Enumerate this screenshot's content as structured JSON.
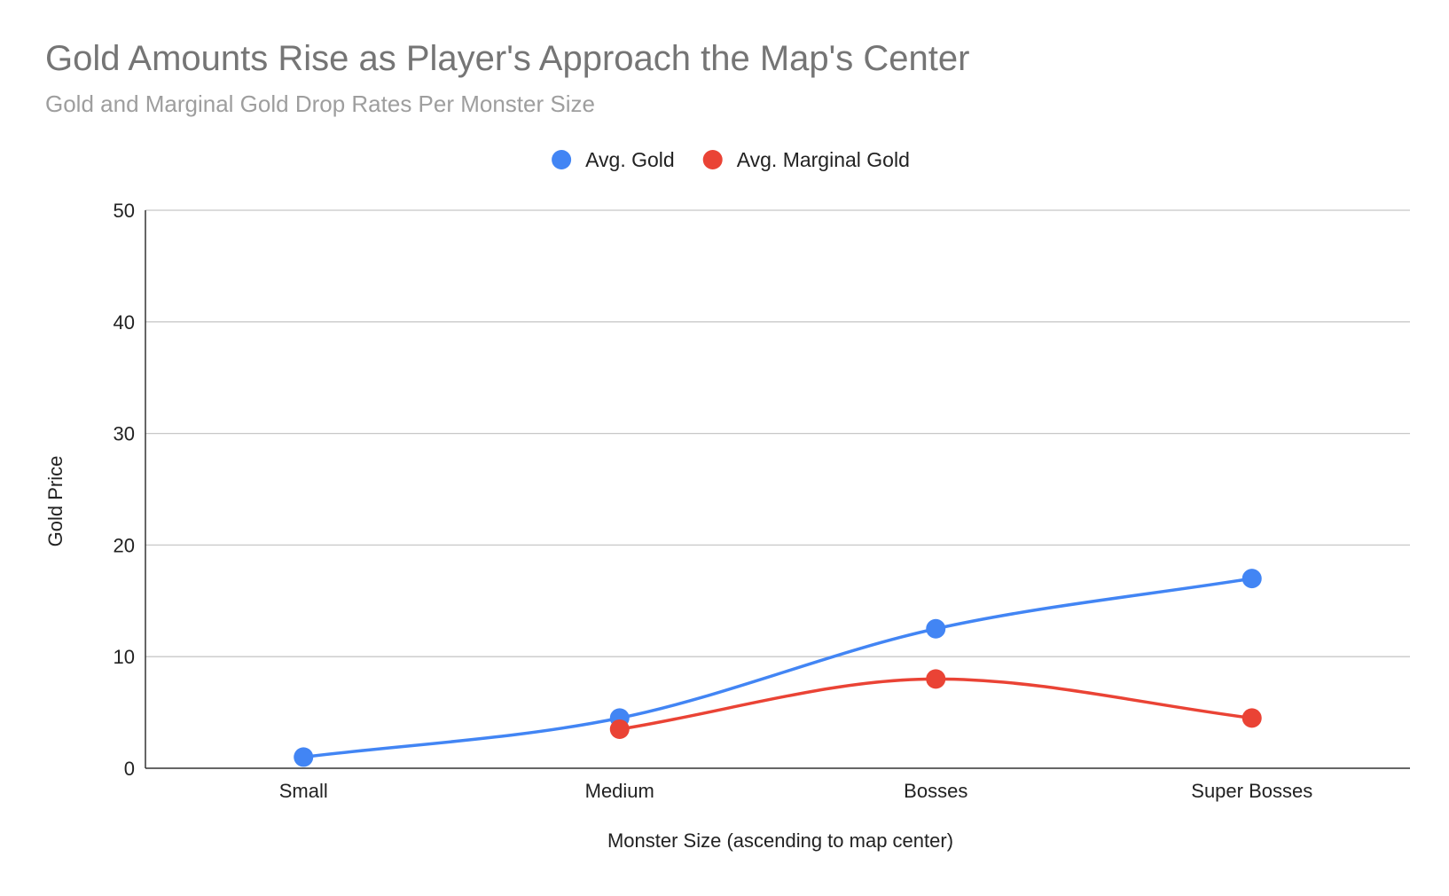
{
  "chart_data": {
    "type": "line",
    "title": "Gold Amounts Rise as Player's Approach the Map's Center",
    "subtitle": "Gold and Marginal Gold Drop Rates Per Monster Size",
    "xlabel": "Monster Size (ascending to map center)",
    "ylabel": "Gold Price",
    "categories": [
      "Small",
      "Medium",
      "Bosses",
      "Super Bosses"
    ],
    "ylim": [
      0,
      50
    ],
    "yticks": [
      0,
      10,
      20,
      30,
      40,
      50
    ],
    "grid": true,
    "legend": "top",
    "smooth": true,
    "series": [
      {
        "name": "Avg. Gold",
        "color": "#4285f4",
        "values": [
          1,
          4.5,
          12.5,
          17
        ]
      },
      {
        "name": "Avg. Marginal Gold",
        "color": "#ea4335",
        "values": [
          null,
          3.5,
          8,
          4.5
        ]
      }
    ]
  }
}
